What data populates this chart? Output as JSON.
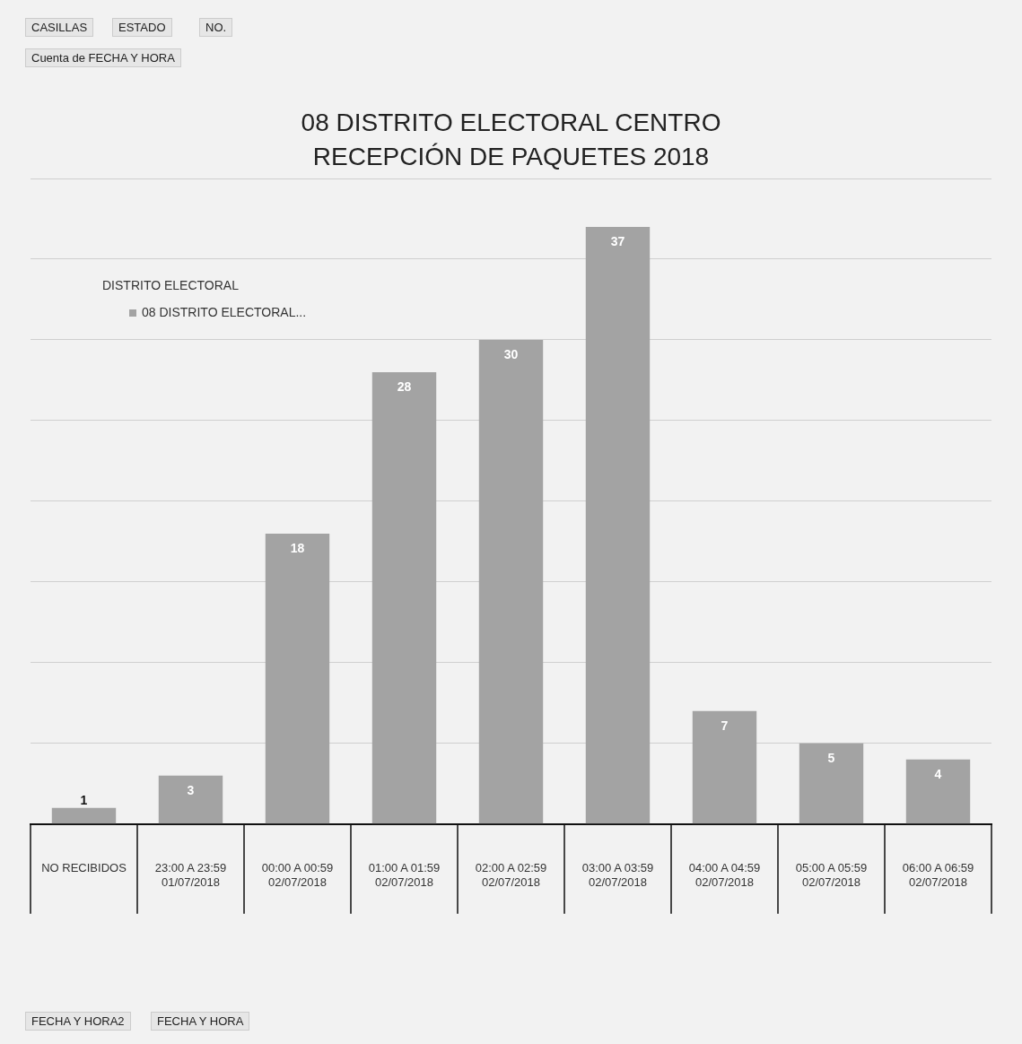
{
  "chart_data": {
    "type": "bar",
    "title": "08 DISTRITO ELECTORAL CENTRO\nRECEPCIÓN DE PAQUETES 2018",
    "categories": [
      "NO RECIBIDOS",
      "23:00 A 23:59\n01/07/2018",
      "00:00 A 00:59\n02/07/2018",
      "01:00 A 01:59\n02/07/2018",
      "02:00 A 02:59\n02/07/2018",
      "03:00 A 03:59\n02/07/2018",
      "04:00 A 04:59\n02/07/2018",
      "05:00 A 05:59\n02/07/2018",
      "06:00 A 06:59\n02/07/2018"
    ],
    "series": [
      {
        "name": "08 DISTRITO ELECTORAL...",
        "color": "#a3a3a3",
        "values": [
          1,
          3,
          18,
          28,
          30,
          37,
          7,
          5,
          4
        ]
      }
    ],
    "legend_title": "DISTRITO ELECTORAL",
    "legend": "top left",
    "ylim": [
      0,
      40
    ],
    "yticks": [
      0,
      5,
      10,
      15,
      20,
      25,
      30,
      35,
      40
    ],
    "tick_labels": "x",
    "grid": "y",
    "data_labels": true,
    "annotations": [
      "CASILLAS",
      "ESTADO",
      "NO.",
      "Cuenta de FECHA Y HORA",
      "FECHA Y HORA2",
      "FECHA Y HORA"
    ]
  }
}
